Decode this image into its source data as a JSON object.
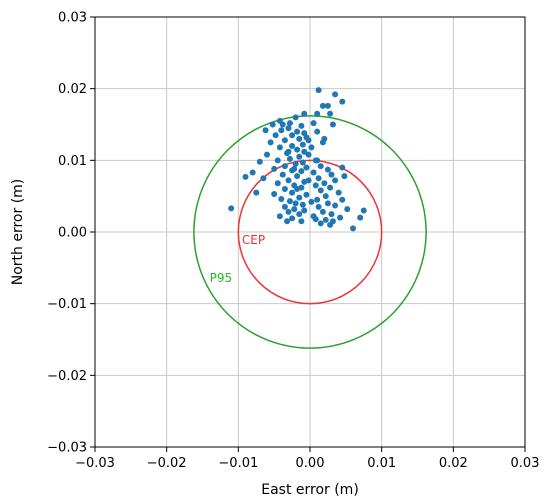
{
  "chart_data": {
    "type": "scatter",
    "xlabel": "East error (m)",
    "ylabel": "North error (m)",
    "xlim": [
      -0.03,
      0.03
    ],
    "ylim": [
      -0.03,
      0.03
    ],
    "x_ticks": [
      "−0.03",
      "−0.02",
      "−0.01",
      "0.00",
      "0.01",
      "0.02",
      "0.03"
    ],
    "y_ticks": [
      "−0.03",
      "−0.02",
      "−0.01",
      "0.00",
      "0.01",
      "0.02",
      "0.03"
    ],
    "grid": true,
    "colors": {
      "points": "#1f77b4",
      "cep": "#ee3333",
      "p95": "#2ca02c",
      "grid": "#c8c8c8"
    },
    "circles": [
      {
        "label": "CEP",
        "center": [
          0.0,
          0.0
        ],
        "radius": 0.01,
        "color": "#ee3333"
      },
      {
        "label": "P95",
        "center": [
          0.0,
          0.0
        ],
        "radius": 0.0162,
        "color": "#2ca02c"
      }
    ],
    "series": [
      {
        "points": [
          [
            0.0012,
            0.0198
          ],
          [
            0.0035,
            0.0192
          ],
          [
            0.0045,
            0.0182
          ],
          [
            0.0025,
            0.0176
          ],
          [
            0.0018,
            0.0176
          ],
          [
            0.0028,
            0.0165
          ],
          [
            0.001,
            0.0165
          ],
          [
            -0.0008,
            0.0165
          ],
          [
            -0.002,
            0.016
          ],
          [
            -0.0028,
            0.0152
          ],
          [
            -0.0042,
            0.0155
          ],
          [
            -0.0052,
            0.015
          ],
          [
            -0.0062,
            0.0142
          ],
          [
            0.0032,
            0.015
          ],
          [
            0.0005,
            0.0152
          ],
          [
            -0.0012,
            0.0148
          ],
          [
            -0.003,
            0.0145
          ],
          [
            -0.004,
            0.0142
          ],
          [
            -0.0018,
            0.014
          ],
          [
            -0.0008,
            0.0138
          ],
          [
            0.001,
            0.014
          ],
          [
            -0.0025,
            0.0135
          ],
          [
            -0.0048,
            0.0135
          ],
          [
            -0.0005,
            0.0132
          ],
          [
            -0.0015,
            0.013
          ],
          [
            -0.0035,
            0.0128
          ],
          [
            0.0018,
            0.0125
          ],
          [
            -0.0055,
            0.0125
          ],
          [
            -0.001,
            0.0122
          ],
          [
            -0.0025,
            0.012
          ],
          [
            0.0002,
            0.0118
          ],
          [
            -0.0042,
            0.0118
          ],
          [
            -0.0018,
            0.0115
          ],
          [
            -0.0008,
            0.0112
          ],
          [
            -0.0032,
            0.011
          ],
          [
            -0.006,
            0.0108
          ],
          [
            -0.0002,
            0.0108
          ],
          [
            -0.0015,
            0.0105
          ],
          [
            -0.0028,
            0.0102
          ],
          [
            -0.0045,
            0.01
          ],
          [
            0.0008,
            0.01
          ],
          [
            -0.007,
            0.0098
          ],
          [
            -0.001,
            0.0097
          ],
          [
            -0.002,
            0.0095
          ],
          [
            -0.0035,
            0.0092
          ],
          [
            0.0015,
            0.0092
          ],
          [
            0.0045,
            0.009
          ],
          [
            -0.0005,
            0.009
          ],
          [
            -0.005,
            0.0088
          ],
          [
            -0.0025,
            0.0086
          ],
          [
            0.0025,
            0.0087
          ],
          [
            -0.0012,
            0.0085
          ],
          [
            -0.008,
            0.0083
          ],
          [
            0.0005,
            0.0083
          ],
          [
            -0.0038,
            0.008
          ],
          [
            0.003,
            0.008
          ],
          [
            0.0048,
            0.0078
          ],
          [
            -0.009,
            0.0077
          ],
          [
            -0.0018,
            0.0078
          ],
          [
            -0.0065,
            0.0075
          ],
          [
            0.0012,
            0.0075
          ],
          [
            -0.003,
            0.0072
          ],
          [
            0.0035,
            0.0072
          ],
          [
            -0.0008,
            0.007
          ],
          [
            0.002,
            0.0068
          ],
          [
            -0.0045,
            0.0068
          ],
          [
            -0.0022,
            0.0065
          ],
          [
            0.0008,
            0.0065
          ],
          [
            -0.0012,
            0.0062
          ],
          [
            0.0028,
            0.0062
          ],
          [
            -0.0035,
            0.006
          ],
          [
            0.0015,
            0.0058
          ],
          [
            -0.0025,
            0.0055
          ],
          [
            0.004,
            0.0055
          ],
          [
            -0.005,
            0.0053
          ],
          [
            -0.0005,
            0.0052
          ],
          [
            0.0022,
            0.005
          ],
          [
            -0.0015,
            0.0048
          ],
          [
            -0.004,
            0.0046
          ],
          [
            0.001,
            0.0045
          ],
          [
            0.0045,
            0.0045
          ],
          [
            -0.0028,
            0.0043
          ],
          [
            0.0002,
            0.0042
          ],
          [
            -0.002,
            0.004
          ],
          [
            0.0025,
            0.004
          ],
          [
            -0.0075,
            0.0055
          ],
          [
            -0.001,
            0.0038
          ],
          [
            0.0035,
            0.0037
          ],
          [
            -0.0035,
            0.0035
          ],
          [
            0.0012,
            0.0035
          ],
          [
            -0.011,
            0.0033
          ],
          [
            -0.0022,
            0.0032
          ],
          [
            0.0052,
            0.0032
          ],
          [
            -0.0008,
            0.003
          ],
          [
            0.0075,
            0.003
          ],
          [
            -0.003,
            0.0028
          ],
          [
            0.0018,
            0.0028
          ],
          [
            -0.0015,
            0.0025
          ],
          [
            0.003,
            0.0025
          ],
          [
            -0.0042,
            0.0022
          ],
          [
            0.0005,
            0.0022
          ],
          [
            0.0042,
            0.002
          ],
          [
            -0.0025,
            0.0019
          ],
          [
            0.0022,
            0.0017
          ],
          [
            -0.0012,
            0.0015
          ],
          [
            0.006,
            0.0005
          ],
          [
            0.0028,
            0.001
          ],
          [
            0.0015,
            0.0012
          ],
          [
            -0.0032,
            0.0015
          ],
          [
            0.0008,
            0.0018
          ],
          [
            0.007,
            0.002
          ],
          [
            0.0032,
            0.0015
          ],
          [
            -0.0018,
            0.006
          ],
          [
            -0.0002,
            0.0072
          ],
          [
            0.001,
            0.01
          ],
          [
            -0.003,
            0.0112
          ],
          [
            -0.0002,
            0.0128
          ],
          [
            -0.0038,
            0.015
          ],
          [
            0.002,
            0.013
          ],
          [
            -0.0022,
            0.0088
          ]
        ]
      }
    ],
    "annotations": [
      {
        "text": "CEP",
        "x": -0.0095,
        "y": -0.0017,
        "color": "#ee3333"
      },
      {
        "text": "P95",
        "x": -0.014,
        "y": -0.007,
        "color": "#22bb22"
      }
    ]
  }
}
